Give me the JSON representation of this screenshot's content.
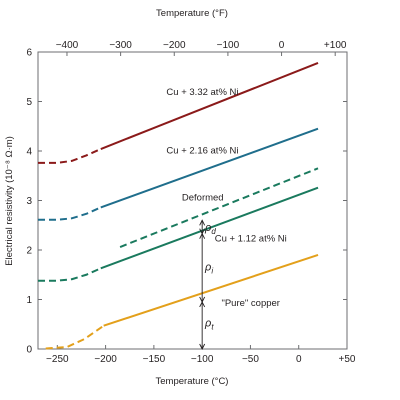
{
  "chart_data": {
    "type": "line",
    "xlabel": "Temperature (°C)",
    "xlabel_top": "Temperature (°F)",
    "ylabel": "Electrical resistivity (10⁻⁸ Ω·m)",
    "xlim": [
      -270,
      50
    ],
    "ylim": [
      0,
      6
    ],
    "x_ticks": [
      -250,
      -200,
      -150,
      -100,
      -50,
      0,
      50
    ],
    "x_tick_labels": [
      "−250",
      "−200",
      "−150",
      "−100",
      "−50",
      "0",
      "+50"
    ],
    "top_ticks_F": [
      -400,
      -300,
      -200,
      -100,
      0,
      100
    ],
    "top_tick_labels": [
      "−400",
      "−300",
      "−200",
      "−100",
      "0",
      "+100"
    ],
    "y_ticks": [
      0,
      1,
      2,
      3,
      4,
      5,
      6
    ],
    "y_tick_labels": [
      "0",
      "1",
      "2",
      "3",
      "4",
      "5",
      "6"
    ],
    "grid": false,
    "series": [
      {
        "name": "Cu + 3.32 at% Ni",
        "color": "#8b1a1a",
        "dashed_points": [
          [
            -270,
            3.76
          ],
          [
            -250,
            3.76
          ],
          [
            -235,
            3.8
          ],
          [
            -220,
            3.91
          ],
          [
            -205,
            4.04
          ]
        ],
        "solid_points": [
          [
            -205,
            4.04
          ],
          [
            20,
            5.78
          ]
        ]
      },
      {
        "name": "Cu + 2.16 at% Ni",
        "color": "#1f6e8c",
        "dashed_points": [
          [
            -270,
            2.61
          ],
          [
            -250,
            2.61
          ],
          [
            -235,
            2.64
          ],
          [
            -220,
            2.73
          ],
          [
            -205,
            2.86
          ]
        ],
        "solid_points": [
          [
            -205,
            2.86
          ],
          [
            20,
            4.45
          ]
        ]
      },
      {
        "name": "Deformed",
        "color": "#1a7a5e",
        "dashed_points": [
          [
            -185,
            2.06
          ],
          [
            20,
            3.65
          ]
        ],
        "solid_points": []
      },
      {
        "name": "Cu + 1.12 at% Ni",
        "color": "#1a7a5e",
        "dashed_points": [
          [
            -270,
            1.38
          ],
          [
            -250,
            1.38
          ],
          [
            -235,
            1.41
          ],
          [
            -220,
            1.5
          ],
          [
            -205,
            1.63
          ]
        ],
        "solid_points": [
          [
            -205,
            1.63
          ],
          [
            20,
            3.26
          ]
        ]
      },
      {
        "name": "\"Pure\" copper",
        "color": "#e3a01b",
        "dashed_points": [
          [
            -262,
            0.01
          ],
          [
            -240,
            0.04
          ],
          [
            -222,
            0.2
          ],
          [
            -202,
            0.47
          ]
        ],
        "solid_points": [
          [
            -202,
            0.47
          ],
          [
            20,
            1.9
          ]
        ]
      }
    ],
    "marker_x": -100,
    "annotations": [
      {
        "text": "ρ",
        "sub": "d",
        "x": -97,
        "y": 2.38
      },
      {
        "text": "ρ",
        "sub": "i",
        "x": -97,
        "y": 1.59
      },
      {
        "text": "ρ",
        "sub": "t",
        "x": -97,
        "y": 0.45
      }
    ],
    "brackets": [
      {
        "from": 0,
        "to": 0.95
      },
      {
        "from": 0.95,
        "to": 2.33
      },
      {
        "from": 2.33,
        "to": 2.6
      }
    ],
    "labels": [
      {
        "text": "Cu + 3.32 at% Ni",
        "x": -137,
        "y": 5.13
      },
      {
        "text": "Cu + 2.16 at% Ni",
        "x": -137,
        "y": 3.95
      },
      {
        "text": "Deformed",
        "x": -121,
        "y": 3.0
      },
      {
        "text": "Cu + 1.12 at% Ni",
        "x": -87,
        "y": 2.17
      },
      {
        "text": "\"Pure\" copper",
        "x": -80,
        "y": 0.87
      }
    ]
  }
}
